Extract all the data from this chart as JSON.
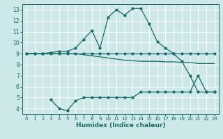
{
  "xlabel": "Humidex (Indice chaleur)",
  "bg_color": "#cce8e8",
  "grid_color": "#ffffff",
  "line_color": "#1a6b6b",
  "xlim": [
    -0.5,
    23.5
  ],
  "ylim": [
    3.5,
    13.5
  ],
  "xticks": [
    0,
    1,
    2,
    3,
    4,
    5,
    6,
    7,
    8,
    9,
    10,
    11,
    12,
    13,
    14,
    15,
    16,
    17,
    18,
    19,
    20,
    21,
    22,
    23
  ],
  "yticks": [
    4,
    5,
    6,
    7,
    8,
    9,
    10,
    11,
    12,
    13
  ],
  "line1_x": [
    0,
    1,
    2,
    3,
    4,
    5,
    6,
    7,
    8,
    9,
    10,
    11,
    12,
    13,
    14,
    15,
    16,
    17,
    18,
    19,
    20,
    21,
    22,
    23
  ],
  "line1_y": [
    9,
    9,
    9,
    9,
    9,
    9,
    9,
    9,
    9,
    9,
    9,
    9,
    9,
    9,
    9,
    9,
    9,
    9,
    9,
    9,
    9,
    9,
    9,
    9
  ],
  "line2_x": [
    0,
    1,
    2,
    3,
    4,
    5,
    6,
    7,
    8,
    9,
    10,
    11,
    12,
    13,
    14,
    15,
    16,
    17,
    18,
    19,
    20,
    21,
    22,
    23
  ],
  "line2_y": [
    9.0,
    9.0,
    9.0,
    9.0,
    9.0,
    9.0,
    9.0,
    8.9,
    8.8,
    8.7,
    8.6,
    8.5,
    8.4,
    8.35,
    8.3,
    8.3,
    8.3,
    8.25,
    8.25,
    8.2,
    8.2,
    8.1,
    8.1,
    8.1
  ],
  "line3_x": [
    0,
    1,
    2,
    3,
    4,
    5,
    6,
    7,
    8,
    9,
    10,
    11,
    12,
    13,
    14,
    15,
    16,
    17,
    18,
    19,
    20,
    21,
    22,
    23
  ],
  "line3_y": [
    9.0,
    9.0,
    9.0,
    9.1,
    9.2,
    9.2,
    9.5,
    10.3,
    11.1,
    9.5,
    12.3,
    13.0,
    12.5,
    13.1,
    13.1,
    11.7,
    10.1,
    9.5,
    9.0,
    8.3,
    7.0,
    5.5,
    5.5,
    5.5
  ],
  "line4_x": [
    3,
    4,
    5,
    6,
    7,
    8,
    9,
    10,
    11,
    12,
    13,
    14,
    15,
    16,
    17,
    18,
    19,
    20,
    21,
    22,
    23
  ],
  "line4_y": [
    4.8,
    4.0,
    3.8,
    4.7,
    5.0,
    5.0,
    5.0,
    5.0,
    5.0,
    5.0,
    5.0,
    5.5,
    5.5,
    5.5,
    5.5,
    5.5,
    5.5,
    5.5,
    7.0,
    5.5,
    5.5
  ]
}
